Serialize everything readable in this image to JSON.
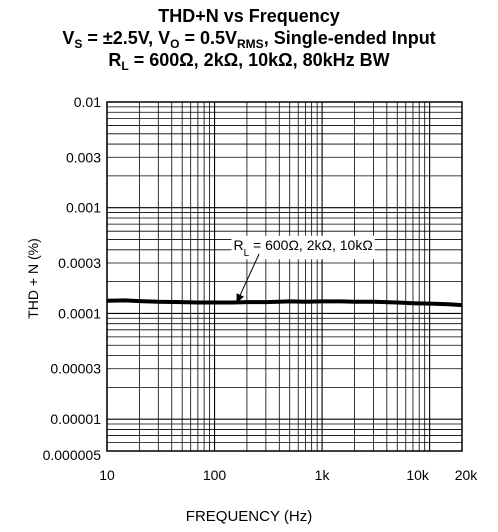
{
  "chart_data": {
    "type": "line",
    "title": "THD+N vs Frequency",
    "subtitle_line1": {
      "v": "V",
      "s_sub": "S",
      "eq1": " = ±2.5V, V",
      "o_sub": "O",
      "eq2": " = 0.5V",
      "rms_sub": "RMS",
      "rest": ", Single-ended Input"
    },
    "subtitle_line2": {
      "r": "R",
      "l_sub": "L",
      "rest": " = 600Ω, 2kΩ, 10kΩ, 80kHz BW"
    },
    "xlabel": "FREQUENCY (Hz)",
    "ylabel": "THD + N (%)",
    "x_scale": "log",
    "y_scale": "log",
    "xlim": [
      10,
      20000
    ],
    "ylim": [
      5e-06,
      0.01
    ],
    "x_ticks": [
      {
        "value": 10,
        "label": "10"
      },
      {
        "value": 100,
        "label": "100"
      },
      {
        "value": 1000,
        "label": "1k"
      },
      {
        "value": 10000,
        "label": "10k"
      },
      {
        "value": 20000,
        "label": "20k"
      }
    ],
    "y_ticks": [
      {
        "value": 0.01,
        "label": "0.01"
      },
      {
        "value": 0.003,
        "label": "0.003"
      },
      {
        "value": 0.001,
        "label": "0.001"
      },
      {
        "value": 0.0003,
        "label": "0.0003"
      },
      {
        "value": 0.0001,
        "label": "0.0001"
      },
      {
        "value": 3e-05,
        "label": "0.00003"
      },
      {
        "value": 1e-05,
        "label": "0.00001"
      },
      {
        "value": 5e-06,
        "label": "0.000005"
      }
    ],
    "grid": true,
    "annotation": {
      "r": "R",
      "l_sub": "L",
      "rest": " = 600Ω, 2kΩ, 10kΩ",
      "x": 150,
      "y": 0.0004,
      "arrow_to_x": 160,
      "arrow_to_y": 0.00012
    },
    "series": [
      {
        "x": [
          10,
          15,
          20,
          30,
          50,
          70,
          100,
          150,
          200,
          300,
          500,
          700,
          1000,
          1500,
          2000,
          3000,
          5000,
          7000,
          10000,
          15000,
          20000
        ],
        "y": [
          0.000132,
          0.000133,
          0.000131,
          0.000129,
          0.000128,
          0.000127,
          0.000127,
          0.000127,
          0.000128,
          0.000128,
          0.00013,
          0.000129,
          0.00013,
          0.00013,
          0.000129,
          0.000129,
          0.000127,
          0.000125,
          0.000124,
          0.000122,
          0.00012
        ]
      }
    ],
    "colors": {
      "line": "#000000",
      "grid": "#000000"
    }
  }
}
